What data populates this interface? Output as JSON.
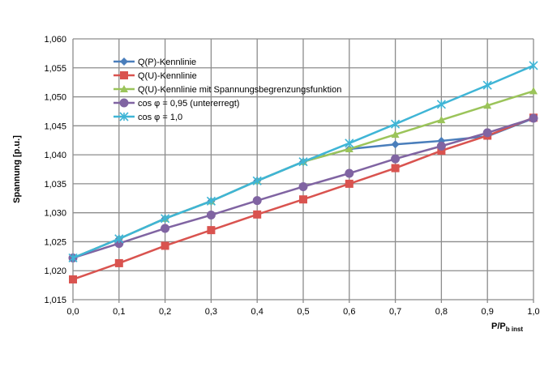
{
  "chart_data": {
    "type": "line",
    "title": "",
    "xlabel_main": "P/P",
    "xlabel_sub": "b inst",
    "ylabel": "Spannung [p.u.]",
    "xlim": [
      0,
      1
    ],
    "ylim": [
      1.015,
      1.06
    ],
    "grid": true,
    "legend_placement": "top-left",
    "x": [
      0.0,
      0.1,
      0.2,
      0.3,
      0.4,
      0.5,
      0.6,
      0.7,
      0.8,
      0.9,
      1.0
    ],
    "x_tick_labels": [
      "0,0",
      "0,1",
      "0,2",
      "0,3",
      "0,4",
      "0,5",
      "0,6",
      "0,7",
      "0,8",
      "0,9",
      "1,0"
    ],
    "y_ticks": [
      1.015,
      1.02,
      1.025,
      1.03,
      1.035,
      1.04,
      1.045,
      1.05,
      1.055,
      1.06
    ],
    "y_tick_labels": [
      "1,015",
      "1,020",
      "1,025",
      "1,030",
      "1,035",
      "1,040",
      "1,045",
      "1,050",
      "1,055",
      "1,060"
    ],
    "series": [
      {
        "name": "Q(P)-Kennlinie",
        "color": "#4a7ebb",
        "marker": "diamond",
        "values": [
          1.0222,
          1.0255,
          1.029,
          1.032,
          1.0355,
          1.0388,
          1.041,
          1.0418,
          1.0424,
          1.0432,
          1.0463
        ]
      },
      {
        "name": "Q(U)-Kennlinie",
        "color": "#d9534f",
        "marker": "square",
        "values": [
          1.0185,
          1.0213,
          1.0243,
          1.027,
          1.0297,
          1.0323,
          1.035,
          1.0377,
          1.0407,
          1.0433,
          1.0464
        ]
      },
      {
        "name": "Q(U)-Kennlinie mit Spannungsbegrenzungsfunktion",
        "color": "#9bc45a",
        "marker": "triangle",
        "values": [
          1.0222,
          1.0255,
          1.029,
          1.032,
          1.0355,
          1.0388,
          1.041,
          1.0435,
          1.046,
          1.0485,
          1.051
        ]
      },
      {
        "name": "cos φ = 0,95 (untererregt)",
        "color": "#8064a2",
        "marker": "circle",
        "values": [
          1.0222,
          1.0247,
          1.0273,
          1.0296,
          1.0321,
          1.0345,
          1.0368,
          1.0393,
          1.0415,
          1.0438,
          1.0463
        ]
      },
      {
        "name": "cos φ = 1,0",
        "color": "#3fb5d6",
        "marker": "star",
        "values": [
          1.0222,
          1.0255,
          1.029,
          1.032,
          1.0355,
          1.0388,
          1.042,
          1.0453,
          1.0487,
          1.052,
          1.0554
        ]
      }
    ]
  }
}
